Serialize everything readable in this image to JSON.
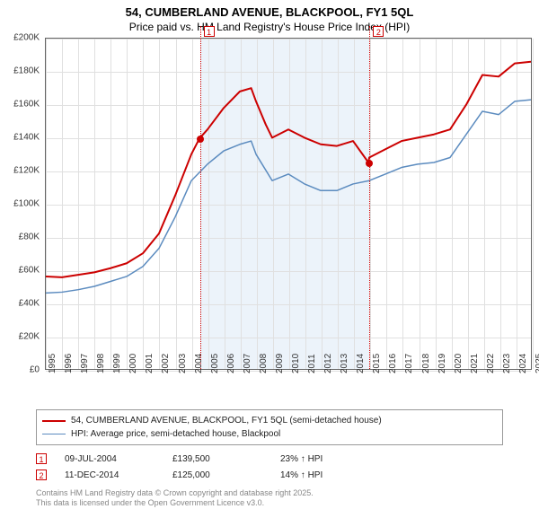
{
  "title": "54, CUMBERLAND AVENUE, BLACKPOOL, FY1 5QL",
  "subtitle": "Price paid vs. HM Land Registry's House Price Index (HPI)",
  "chart": {
    "type": "line",
    "background_color": "#ffffff",
    "grid_color": "#e0e0e0",
    "border_color": "#666666",
    "x": {
      "ticks": [
        1995,
        1996,
        1997,
        1998,
        1999,
        2000,
        2001,
        2002,
        2003,
        2004,
        2005,
        2006,
        2007,
        2008,
        2009,
        2010,
        2011,
        2012,
        2013,
        2014,
        2015,
        2016,
        2017,
        2018,
        2019,
        2020,
        2021,
        2022,
        2023,
        2024,
        2025
      ],
      "fontsize": 10,
      "rotate_deg": -90
    },
    "y": {
      "min": 0,
      "max": 200000,
      "tick_step": 20000,
      "format_prefix": "£",
      "format_suffix": "K",
      "divide_by": 1000,
      "fontsize": 10
    },
    "shaded_region": {
      "x_from": 2004.5,
      "x_to": 2014.95,
      "color": "#dce9f5",
      "opacity": 0.55
    },
    "series": [
      {
        "name": "price_paid",
        "label": "54, CUMBERLAND AVENUE, BLACKPOOL, FY1 5QL (semi-detached house)",
        "color": "#cc0000",
        "line_width": 2,
        "points": [
          [
            1995,
            56000
          ],
          [
            1996,
            55500
          ],
          [
            1997,
            57000
          ],
          [
            1998,
            58500
          ],
          [
            1999,
            61000
          ],
          [
            2000,
            64000
          ],
          [
            2001,
            70000
          ],
          [
            2002,
            82000
          ],
          [
            2003,
            105000
          ],
          [
            2004,
            130000
          ],
          [
            2004.5,
            139500
          ],
          [
            2005,
            145000
          ],
          [
            2006,
            158000
          ],
          [
            2007,
            168000
          ],
          [
            2007.7,
            170000
          ],
          [
            2008,
            162000
          ],
          [
            2008.6,
            148000
          ],
          [
            2009,
            140000
          ],
          [
            2010,
            145000
          ],
          [
            2011,
            140000
          ],
          [
            2012,
            136000
          ],
          [
            2013,
            135000
          ],
          [
            2014,
            138000
          ],
          [
            2014.95,
            125000
          ],
          [
            2015,
            128000
          ],
          [
            2016,
            133000
          ],
          [
            2017,
            138000
          ],
          [
            2018,
            140000
          ],
          [
            2019,
            142000
          ],
          [
            2020,
            145000
          ],
          [
            2021,
            160000
          ],
          [
            2022,
            178000
          ],
          [
            2023,
            177000
          ],
          [
            2024,
            185000
          ],
          [
            2025,
            186000
          ]
        ]
      },
      {
        "name": "hpi",
        "label": "HPI: Average price, semi-detached house, Blackpool",
        "color": "#5b8bbf",
        "line_width": 1.5,
        "points": [
          [
            1995,
            46000
          ],
          [
            1996,
            46500
          ],
          [
            1997,
            48000
          ],
          [
            1998,
            50000
          ],
          [
            1999,
            53000
          ],
          [
            2000,
            56000
          ],
          [
            2001,
            62000
          ],
          [
            2002,
            73000
          ],
          [
            2003,
            92000
          ],
          [
            2004,
            114000
          ],
          [
            2005,
            124000
          ],
          [
            2006,
            132000
          ],
          [
            2007,
            136000
          ],
          [
            2007.7,
            138000
          ],
          [
            2008,
            130000
          ],
          [
            2009,
            114000
          ],
          [
            2010,
            118000
          ],
          [
            2011,
            112000
          ],
          [
            2012,
            108000
          ],
          [
            2013,
            108000
          ],
          [
            2014,
            112000
          ],
          [
            2015,
            114000
          ],
          [
            2016,
            118000
          ],
          [
            2017,
            122000
          ],
          [
            2018,
            124000
          ],
          [
            2019,
            125000
          ],
          [
            2020,
            128000
          ],
          [
            2021,
            142000
          ],
          [
            2022,
            156000
          ],
          [
            2023,
            154000
          ],
          [
            2024,
            162000
          ],
          [
            2025,
            163000
          ]
        ]
      }
    ],
    "event_markers": [
      {
        "n": "1",
        "x": 2004.5,
        "y": 139500,
        "color": "#cc0000",
        "dot_color": "#cc0000"
      },
      {
        "n": "2",
        "x": 2014.95,
        "y": 125000,
        "color": "#cc0000",
        "dot_color": "#cc0000"
      }
    ]
  },
  "legend": {
    "border_color": "#999999",
    "items": [
      {
        "color": "#cc0000",
        "width": 2,
        "label": "54, CUMBERLAND AVENUE, BLACKPOOL, FY1 5QL (semi-detached house)"
      },
      {
        "color": "#5b8bbf",
        "width": 1.5,
        "label": "HPI: Average price, semi-detached house, Blackpool"
      }
    ]
  },
  "events_table": {
    "rows": [
      {
        "n": "1",
        "date": "09-JUL-2004",
        "price": "£139,500",
        "delta": "23% ↑ HPI"
      },
      {
        "n": "2",
        "date": "11-DEC-2014",
        "price": "£125,000",
        "delta": "14% ↑ HPI"
      }
    ]
  },
  "footer": {
    "line1": "Contains HM Land Registry data © Crown copyright and database right 2025.",
    "line2": "This data is licensed under the Open Government Licence v3.0."
  }
}
